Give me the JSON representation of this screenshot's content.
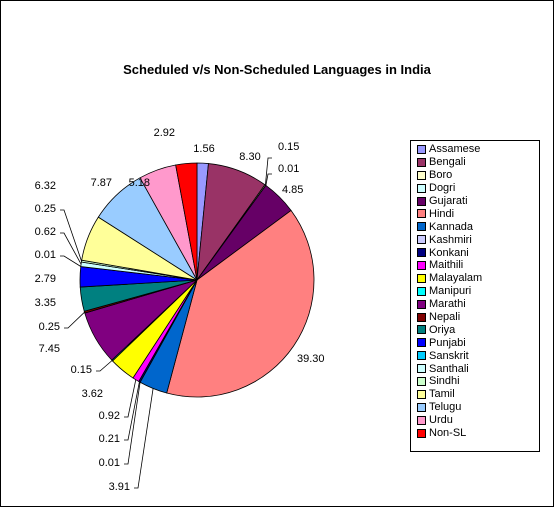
{
  "chart_data": {
    "type": "pie",
    "title": "Scheduled  v/s  Non-Scheduled Languages in India",
    "legend_position": "right",
    "categories": [
      "Assamese",
      "Bengali",
      "Boro",
      "Dogri",
      "Gujarati",
      "Hindi",
      "Kannada",
      "Kashmiri",
      "Konkani",
      "Maithili",
      "Malayalam",
      "Manipuri",
      "Marathi",
      "Nepali",
      "Oriya",
      "Punjabi",
      "Sanskrit",
      "Santhali",
      "Sindhi",
      "Tamil",
      "Telugu",
      "Urdu",
      "Non-SL"
    ],
    "values": [
      1.56,
      8.3,
      0.15,
      0.01,
      4.85,
      39.3,
      3.91,
      0.01,
      0.21,
      0.92,
      3.62,
      0.15,
      7.45,
      0.25,
      3.35,
      2.79,
      0.01,
      0.62,
      0.25,
      6.32,
      7.87,
      5.18,
      2.92
    ],
    "value_labels": [
      "1.56",
      "8.30",
      "0.15",
      "0.01",
      "4.85",
      "39.30",
      "3.91",
      "0.01",
      "0.21",
      "0.92",
      "3.62",
      "0.15",
      "7.45",
      "0.25",
      "3.35",
      "2.79",
      "0.01",
      "0.62",
      "0.25",
      "6.32",
      "7.87",
      "5.18",
      "2.92"
    ],
    "colors": [
      "#9999FF",
      "#993366",
      "#FFFFCC",
      "#CCFFFF",
      "#660066",
      "#FF8080",
      "#0066CC",
      "#CCCCFF",
      "#000080",
      "#FF00FF",
      "#FFFF00",
      "#00FFFF",
      "#800080",
      "#800000",
      "#008080",
      "#0000FF",
      "#00CCFF",
      "#CCFFFF",
      "#CCFFCC",
      "#FFFF99",
      "#99CCFF",
      "#FF99CC",
      "#FF0000"
    ]
  }
}
